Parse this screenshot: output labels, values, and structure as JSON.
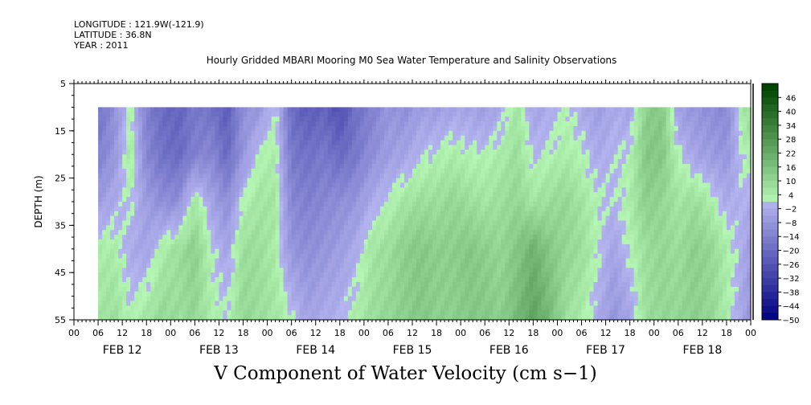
{
  "meta": {
    "longitude": "LONGITUDE : 121.9W(-121.9)",
    "latitude": "LATITUDE : 36.8N",
    "year": "YEAR : 2011"
  },
  "chart_data": {
    "type": "heatmap",
    "title": "Hourly Gridded MBARI Mooring M0 Sea Water Temperature and Salinity Observations",
    "caption": "V Component of Water Velocity (cm s−1)",
    "ylabel": "DEPTH (m)",
    "xlabel": "",
    "ylim": [
      5,
      55
    ],
    "y_inverted": true,
    "y_ticks": [
      "5",
      "15",
      "25",
      "35",
      "45",
      "55"
    ],
    "x_hour_ticks": [
      "00",
      "06",
      "12",
      "18",
      "00",
      "06",
      "12",
      "18",
      "00",
      "06",
      "12",
      "18",
      "00",
      "06",
      "12",
      "18",
      "00",
      "06",
      "12",
      "18",
      "00",
      "06",
      "12",
      "18",
      "00",
      "06",
      "12",
      "18",
      "00"
    ],
    "x_day_labels": [
      "FEB 12",
      "FEB 13",
      "FEB 14",
      "FEB 15",
      "FEB 16",
      "FEB 17",
      "FEB 18"
    ],
    "x_range_hours": [
      0,
      168
    ],
    "data_start_hour": 6,
    "data_depth_top": 10,
    "colorbar_labels": [
      "46",
      "40",
      "34",
      "28",
      "22",
      "16",
      "10",
      "4",
      "−2",
      "−8",
      "−14",
      "−20",
      "−26",
      "−32",
      "−38",
      "−44",
      "−50"
    ],
    "colorbar_range": [
      -50,
      52
    ],
    "velocity_profile": {
      "depths": [
        10,
        20,
        30,
        40,
        55
      ],
      "times": [
        6,
        10,
        14,
        18,
        22,
        26,
        30,
        34,
        38,
        42,
        46,
        50,
        54,
        58,
        62,
        66,
        70,
        74,
        78,
        82,
        86,
        90,
        94,
        98,
        102,
        106,
        110,
        114,
        118,
        122,
        126,
        130,
        134,
        138,
        142,
        146,
        150,
        154,
        158,
        162,
        166,
        168
      ],
      "values": [
        [
          -18,
          -10,
          3,
          -14,
          -20,
          -22,
          -16,
          -18,
          -24,
          -10,
          -8,
          2,
          -20,
          -24,
          -22,
          -28,
          -18,
          -14,
          -8,
          -10,
          -6,
          -6,
          -4,
          -4,
          -6,
          -2,
          6,
          -4,
          -2,
          2,
          -2,
          -6,
          -2,
          -4,
          12,
          14,
          -6,
          -8,
          -10,
          -12,
          6,
          8
        ],
        [
          -14,
          -8,
          6,
          -12,
          -18,
          -20,
          -14,
          -12,
          -20,
          -8,
          2,
          4,
          -16,
          -18,
          -16,
          -20,
          -16,
          -10,
          -6,
          -4,
          0,
          2,
          4,
          2,
          2,
          4,
          8,
          0,
          2,
          4,
          2,
          -2,
          0,
          2,
          14,
          14,
          2,
          -4,
          -6,
          -8,
          2,
          4
        ],
        [
          -6,
          -2,
          2,
          -6,
          -10,
          -10,
          6,
          -4,
          -10,
          2,
          6,
          6,
          -12,
          -14,
          -12,
          -10,
          -8,
          -2,
          2,
          6,
          8,
          8,
          10,
          8,
          6,
          8,
          10,
          6,
          8,
          10,
          6,
          2,
          0,
          4,
          12,
          10,
          6,
          8,
          4,
          -2,
          0,
          -2
        ],
        [
          4,
          4,
          -2,
          -4,
          4,
          8,
          12,
          2,
          -4,
          8,
          8,
          4,
          -8,
          -10,
          -8,
          -6,
          -2,
          6,
          8,
          12,
          14,
          12,
          12,
          14,
          12,
          10,
          14,
          20,
          14,
          10,
          8,
          2,
          -4,
          2,
          8,
          10,
          8,
          12,
          10,
          4,
          -2,
          -6
        ],
        [
          6,
          8,
          2,
          6,
          10,
          8,
          10,
          4,
          2,
          10,
          8,
          6,
          2,
          -4,
          -2,
          0,
          4,
          8,
          10,
          12,
          14,
          12,
          12,
          14,
          14,
          12,
          18,
          24,
          18,
          8,
          4,
          -2,
          -8,
          -4,
          8,
          10,
          10,
          12,
          10,
          4,
          -4,
          -8
        ]
      ]
    }
  }
}
